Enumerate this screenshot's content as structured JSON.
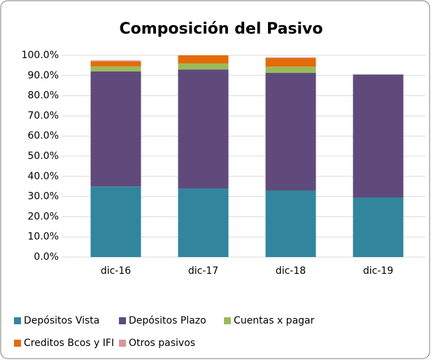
{
  "chart_data": {
    "type": "stacked_bar",
    "title": "Composición del Pasivo",
    "categories": [
      "dic-16",
      "dic-17",
      "dic-18",
      "dic-19"
    ],
    "series": [
      {
        "name": "Depósitos Vista",
        "color": "#31859c",
        "values": [
          35,
          34,
          33,
          29.5
        ]
      },
      {
        "name": "Depósitos Plazo",
        "color": "#604a7b",
        "values": [
          57,
          59,
          58.3,
          61
        ]
      },
      {
        "name": "Cuentas x pagar",
        "color": "#9bbb59",
        "values": [
          2.5,
          3,
          3.1,
          0
        ]
      },
      {
        "name": "Creditos Bcos y IFI",
        "color": "#e36c09",
        "values": [
          2.5,
          4,
          4.2,
          0
        ]
      },
      {
        "name": "Otros pasivos",
        "color": "#d99694",
        "values": [
          0.5,
          0,
          0.4,
          0
        ]
      }
    ],
    "ylim": [
      0,
      100
    ],
    "yticks": [
      {
        "value": 0,
        "label": "0.0%"
      },
      {
        "value": 10,
        "label": "10.0%"
      },
      {
        "value": 20,
        "label": "20.0%"
      },
      {
        "value": 30,
        "label": "30.0%"
      },
      {
        "value": 40,
        "label": "40.0%"
      },
      {
        "value": 50,
        "label": "50.0%"
      },
      {
        "value": 60,
        "label": "60.0%"
      },
      {
        "value": 70,
        "label": "70.0%"
      },
      {
        "value": 80,
        "label": "80.0%"
      },
      {
        "value": 90,
        "label": "90.0%"
      },
      {
        "value": 100,
        "label": "100.0%"
      }
    ],
    "grid": true
  }
}
